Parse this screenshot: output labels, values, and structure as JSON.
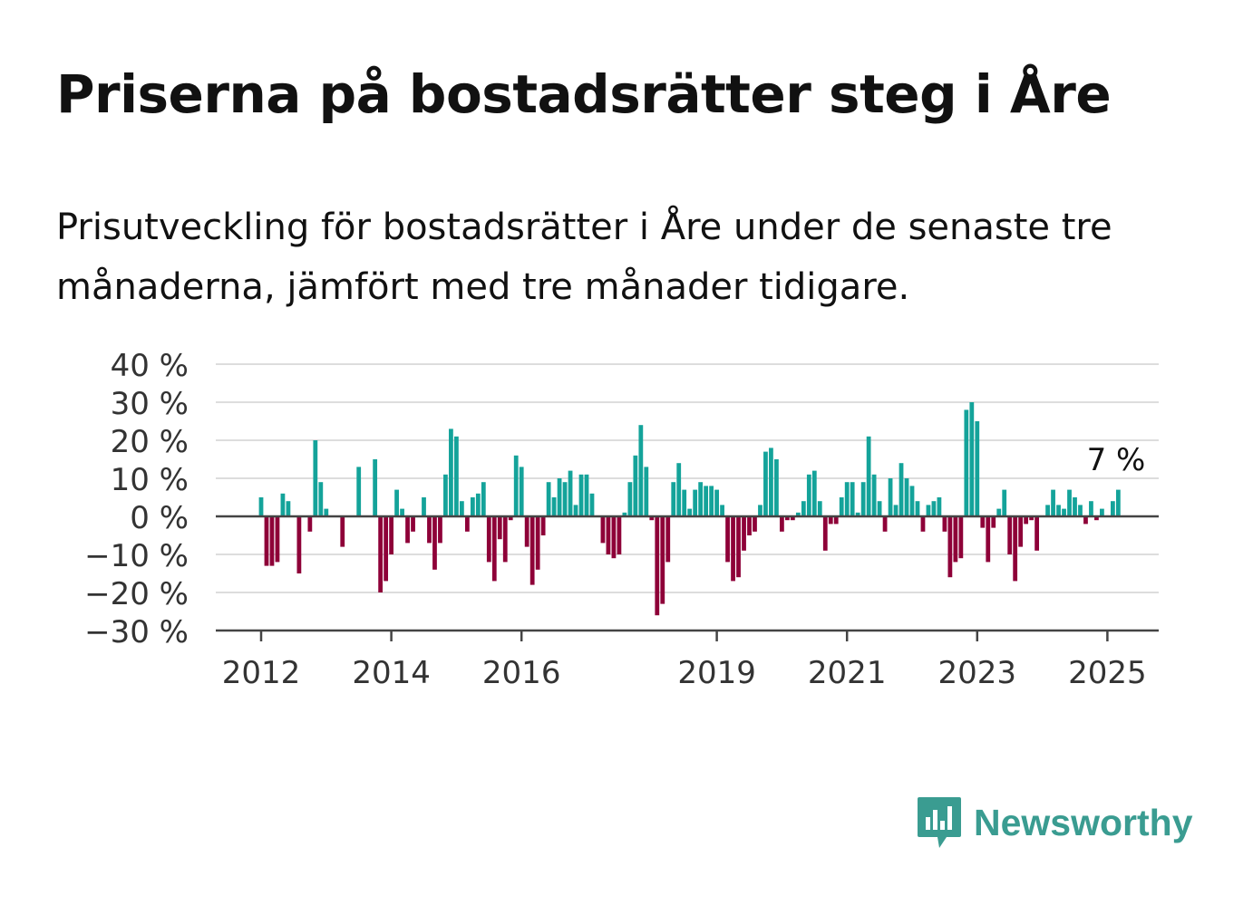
{
  "title": "Priserna på bostadsrätter steg i Åre",
  "subtitle": "Prisutveckling för bostadsrätter i Åre under de senaste tre månaderna, jämfört med tre månader tidigare.",
  "logo": {
    "text": "Newsworthy",
    "icon": "newsworthy-chart-bubble-icon",
    "color": "#3a9c91"
  },
  "chart_data": {
    "type": "bar",
    "title": "",
    "xlabel": "",
    "ylabel": "",
    "ylim": [
      -30,
      40
    ],
    "yticks": [
      40,
      30,
      20,
      10,
      0,
      -10,
      -20,
      -30
    ],
    "ytick_labels": [
      "40 %",
      "30 %",
      "20 %",
      "10 %",
      "0 %",
      "−10 %",
      "−20 %",
      "−30 %"
    ],
    "xticks": [
      "2012",
      "2014",
      "2016",
      "2019",
      "2021",
      "2023",
      "2025"
    ],
    "x_start": "2012-01",
    "frequency": "monthly",
    "positive_color": "#14a39a",
    "negative_color": "#8e0038",
    "grid": true,
    "last_value_label": "7 %",
    "values": [
      5,
      -13,
      -13,
      -12,
      6,
      4,
      0,
      -15,
      0,
      -4,
      20,
      9,
      2,
      0,
      0,
      -8,
      0,
      0,
      13,
      0,
      0,
      15,
      -20,
      -17,
      -10,
      7,
      2,
      -7,
      -4,
      0,
      5,
      -7,
      -14,
      -7,
      11,
      23,
      21,
      4,
      -4,
      5,
      6,
      9,
      -12,
      -17,
      -6,
      -12,
      -1,
      16,
      13,
      -8,
      -18,
      -14,
      -5,
      9,
      5,
      10,
      9,
      12,
      3,
      11,
      11,
      6,
      0,
      -7,
      -10,
      -11,
      -10,
      1,
      9,
      16,
      24,
      13,
      -1,
      -26,
      -23,
      -12,
      9,
      14,
      7,
      2,
      7,
      9,
      8,
      8,
      7,
      3,
      -12,
      -17,
      -16,
      -9,
      -5,
      -4,
      3,
      17,
      18,
      15,
      -4,
      -1,
      -1,
      1,
      4,
      11,
      12,
      4,
      -9,
      -2,
      -2,
      5,
      9,
      9,
      1,
      9,
      21,
      11,
      4,
      -4,
      10,
      3,
      14,
      10,
      8,
      4,
      -4,
      3,
      4,
      5,
      -4,
      -16,
      -12,
      -11,
      28,
      30,
      25,
      -3,
      -12,
      -3,
      2,
      7,
      -10,
      -17,
      -8,
      -2,
      -1,
      -9,
      0,
      3,
      7,
      3,
      2,
      7,
      5,
      3,
      -2,
      4,
      -1,
      2,
      0,
      4,
      7
    ]
  }
}
